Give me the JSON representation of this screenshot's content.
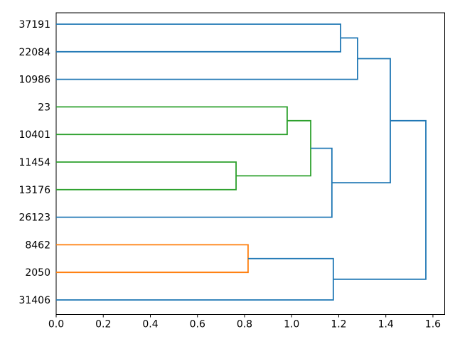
{
  "figure": {
    "background": "#ffffff",
    "frame_color": "#000000"
  },
  "chart_data": {
    "type": "dendrogram",
    "orientation": "leaves-left-root-right",
    "title": "",
    "grid": false,
    "legend": false,
    "leaves": [
      "37191",
      "22084",
      "10986",
      "23",
      "10401",
      "11454",
      "13176",
      "26123",
      "8462",
      "2050",
      "31406"
    ],
    "links": [
      {
        "id": "M0",
        "children": [
          "L0",
          "L1"
        ],
        "height": 1.208,
        "color": "blue"
      },
      {
        "id": "M1",
        "children": [
          "M0",
          "L2"
        ],
        "height": 1.28,
        "color": "blue"
      },
      {
        "id": "M2",
        "children": [
          "L3",
          "L4"
        ],
        "height": 0.981,
        "color": "green"
      },
      {
        "id": "M3",
        "children": [
          "L5",
          "L6"
        ],
        "height": 0.764,
        "color": "green"
      },
      {
        "id": "M4",
        "children": [
          "M2",
          "M3"
        ],
        "height": 1.081,
        "color": "green"
      },
      {
        "id": "M5",
        "children": [
          "M4",
          "L7"
        ],
        "height": 1.171,
        "color": "blue"
      },
      {
        "id": "M6",
        "children": [
          "M1",
          "M5"
        ],
        "height": 1.419,
        "color": "blue"
      },
      {
        "id": "M7",
        "children": [
          "L8",
          "L9"
        ],
        "height": 0.815,
        "color": "orange"
      },
      {
        "id": "M8",
        "children": [
          "M7",
          "L10"
        ],
        "height": 1.177,
        "color": "blue"
      },
      {
        "id": "M9",
        "children": [
          "M6",
          "M8"
        ],
        "height": 1.57,
        "color": "blue"
      }
    ],
    "palette": {
      "blue": "#1f77b4",
      "green": "#2ca02c",
      "orange": "#ff7f0e"
    },
    "x_axis": {
      "tick_labels": [
        "0.0",
        "0.2",
        "0.4",
        "0.6",
        "0.8",
        "1.0",
        "1.2",
        "1.4",
        "1.6"
      ],
      "tick_values": [
        0.0,
        0.2,
        0.4,
        0.6,
        0.8,
        1.0,
        1.2,
        1.4,
        1.6
      ],
      "xlim": [
        0,
        1.65
      ]
    }
  }
}
